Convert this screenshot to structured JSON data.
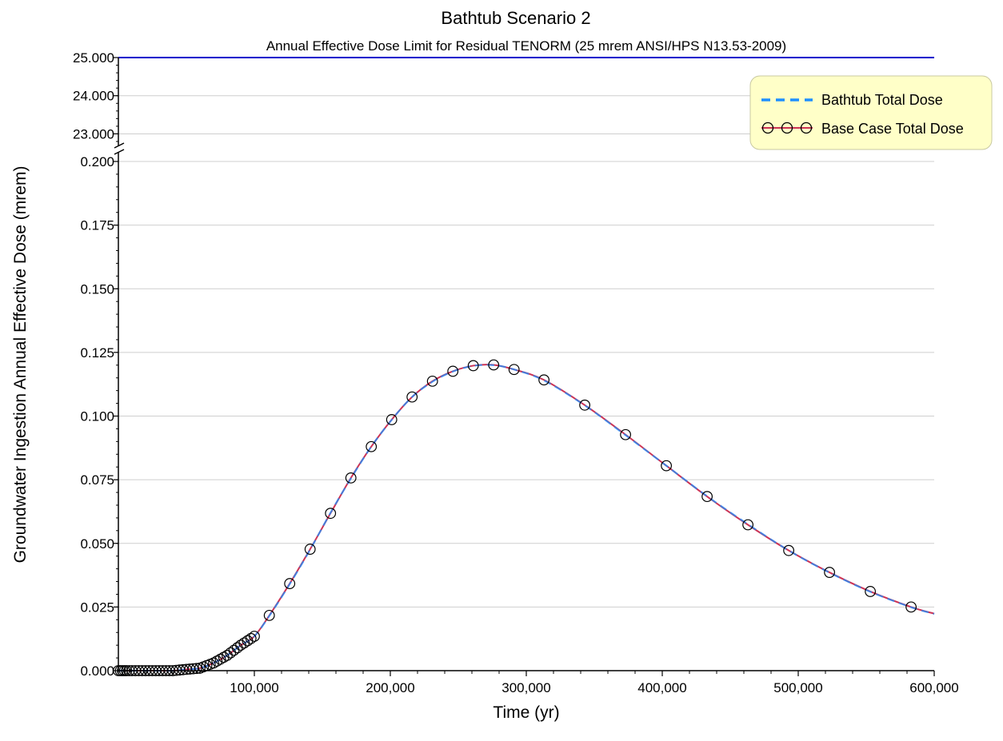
{
  "chart_data": {
    "type": "line",
    "title": "Bathtub Scenario 2",
    "subtitle": "Annual Effective Dose Limit for Residual TENORM (25 mrem ANSI/HPS N13.53-2009)",
    "xlabel": "Time (yr)",
    "ylabel": "Groundwater Ingestion Annual Effective Dose (mrem)",
    "xlim": [
      0,
      600000
    ],
    "x_ticks": [
      100000,
      200000,
      300000,
      400000,
      500000,
      600000
    ],
    "x_tick_labels": [
      "100,000",
      "200,000",
      "300,000",
      "400,000",
      "500,000",
      "600,000"
    ],
    "y_axis_broken": true,
    "y_lower_range": [
      0,
      0.2
    ],
    "y_upper_range": [
      22.8,
      25
    ],
    "y_lower_ticks": [
      0,
      0.025,
      0.05,
      0.075,
      0.1,
      0.125,
      0.15,
      0.175,
      0.2
    ],
    "y_lower_tick_labels": [
      "0.000",
      "0.025",
      "0.050",
      "0.075",
      "0.100",
      "0.125",
      "0.150",
      "0.175",
      "0.200"
    ],
    "y_upper_ticks": [
      23,
      24,
      25
    ],
    "y_upper_tick_labels": [
      "23.000",
      "24.000",
      "25.000"
    ],
    "grid": true,
    "legend_position": "top-right",
    "limit_line": {
      "value": 25,
      "color": "#0000cc"
    },
    "series": [
      {
        "name": "Bathtub Total Dose",
        "style": "dashed",
        "color": "#1e8fff",
        "x": [
          0,
          20000,
          40000,
          50000,
          60000,
          70000,
          80000,
          90000,
          100000,
          111000,
          126000,
          141000,
          156000,
          171000,
          186000,
          201000,
          216000,
          231000,
          246000,
          261000,
          276000,
          291000,
          313000,
          343000,
          373000,
          403000,
          433000,
          463000,
          493000,
          523000,
          553000,
          583000,
          600000
        ],
        "values": [
          0,
          0,
          0,
          0.0005,
          0.001,
          0.003,
          0.006,
          0.01,
          0.0135,
          0.0215,
          0.034,
          0.0475,
          0.062,
          0.0755,
          0.088,
          0.0985,
          0.1075,
          0.1135,
          0.1175,
          0.1197,
          0.12,
          0.1183,
          0.114,
          0.1042,
          0.0925,
          0.0805,
          0.0685,
          0.0575,
          0.0472,
          0.0385,
          0.031,
          0.0249,
          0.0223
        ]
      },
      {
        "name": "Base Case Total Dose",
        "style": "solid-with-circles",
        "color": "#cc3355",
        "marker_color": "#000000",
        "x": [
          0,
          20000,
          40000,
          50000,
          60000,
          70000,
          80000,
          90000,
          100000,
          111000,
          126000,
          141000,
          156000,
          171000,
          186000,
          201000,
          216000,
          231000,
          246000,
          261000,
          276000,
          291000,
          313000,
          343000,
          373000,
          403000,
          433000,
          463000,
          493000,
          523000,
          553000,
          583000,
          600000
        ],
        "values": [
          0,
          0,
          0,
          0.0005,
          0.001,
          0.003,
          0.006,
          0.01,
          0.0135,
          0.0217,
          0.0342,
          0.0477,
          0.0618,
          0.0757,
          0.088,
          0.0986,
          0.1075,
          0.1137,
          0.1176,
          0.1198,
          0.1201,
          0.1183,
          0.1142,
          0.1043,
          0.0927,
          0.0805,
          0.0684,
          0.0573,
          0.0472,
          0.0386,
          0.0311,
          0.025,
          0.0224
        ],
        "marker_x": [
          0,
          1500,
          3000,
          4500,
          6000,
          8000,
          10000,
          12500,
          15000,
          17500,
          20000,
          22500,
          25000,
          27500,
          30000,
          32500,
          35000,
          37500,
          40000,
          42500,
          45000,
          47500,
          50000,
          52500,
          55000,
          57500,
          60000,
          62500,
          65000,
          67500,
          70000,
          72500,
          75000,
          77500,
          80000,
          82500,
          85000,
          87500,
          90000,
          92500,
          95000,
          97500,
          100000,
          111000,
          126000,
          141000,
          156000,
          171000,
          186000,
          201000,
          216000,
          231000,
          246000,
          261000,
          276000,
          291000,
          313000,
          343000,
          373000,
          403000,
          433000,
          463000,
          493000,
          523000,
          553000,
          583000
        ]
      }
    ]
  }
}
